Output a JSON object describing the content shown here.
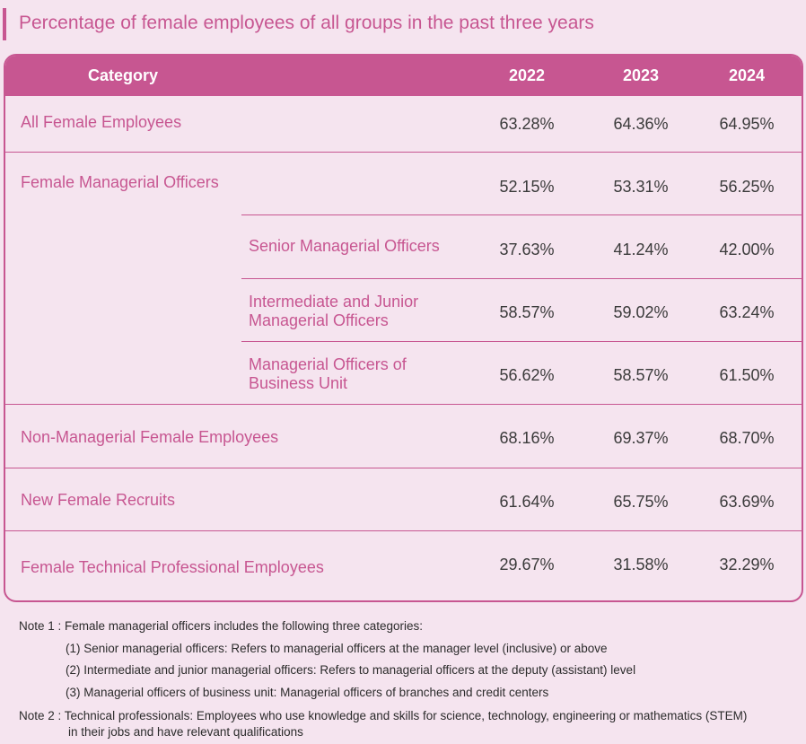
{
  "title": "Percentage of female employees of all groups in the past three years",
  "header": {
    "category": "Category",
    "years": [
      "2022",
      "2023",
      "2024"
    ]
  },
  "rows": [
    {
      "label": "All Female Employees",
      "values": [
        "63.28%",
        "64.36%",
        "64.95%"
      ]
    },
    {
      "label": "Female Managerial Officers",
      "values": [
        "52.15%",
        "53.31%",
        "56.25%"
      ]
    },
    {
      "label": "Senior Managerial Officers",
      "values": [
        "37.63%",
        "41.24%",
        "42.00%"
      ]
    },
    {
      "label_line1": "Intermediate and Junior",
      "label_line2": "Managerial Officers",
      "values": [
        "58.57%",
        "59.02%",
        "63.24%"
      ]
    },
    {
      "label_line1": "Managerial Officers of",
      "label_line2": "Business Unit",
      "values": [
        "56.62%",
        "58.57%",
        "61.50%"
      ]
    },
    {
      "label": "Non-Managerial Female Employees",
      "values": [
        "68.16%",
        "69.37%",
        "68.70%"
      ]
    },
    {
      "label": "New Female Recruits",
      "values": [
        "61.64%",
        "65.75%",
        "63.69%"
      ]
    },
    {
      "label": "Female Technical Professional Employees",
      "values": [
        "29.67%",
        "31.58%",
        "32.29%"
      ]
    }
  ],
  "notes": {
    "note1": "Note 1 : Female managerial officers includes the following three categories:",
    "note1_items": [
      "(1) Senior managerial officers: Refers to managerial officers at the manager level (inclusive) or above",
      "(2) Intermediate and junior managerial officers: Refers to managerial officers at the deputy (assistant) level",
      "(3) Managerial officers of business unit: Managerial officers of branches and credit centers"
    ],
    "note2": "Note 2 : Technical professionals: Employees who use knowledge and skills for science, technology, engineering or mathematics (STEM)",
    "note2_cont": "in their jobs and have relevant qualifications"
  }
}
